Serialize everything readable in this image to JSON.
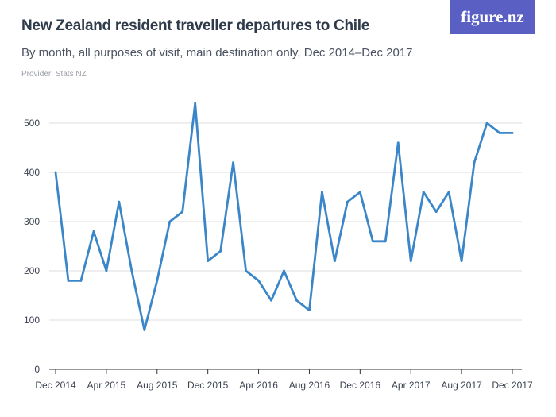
{
  "header": {
    "title": "New Zealand resident traveller departures to Chile",
    "subtitle": "By month, all purposes of visit, main destination only, Dec 2014–Dec 2017",
    "provider": "Provider: Stats NZ",
    "logo_text": "figure.nz"
  },
  "colors": {
    "line": "#3a86c8",
    "logo_background": "#5a5fc4",
    "gridline": "#dddddd"
  },
  "chart_data": {
    "type": "line",
    "title": "New Zealand resident traveller departures to Chile",
    "xlabel": "",
    "ylabel": "",
    "ylim": [
      0,
      540
    ],
    "yticks": [
      0,
      100,
      200,
      300,
      400,
      500
    ],
    "xtick_labels": [
      "Dec 2014",
      "Apr 2015",
      "Aug 2015",
      "Dec 2015",
      "Apr 2016",
      "Aug 2016",
      "Dec 2016",
      "Apr 2017",
      "Aug 2017",
      "Dec 2017"
    ],
    "x": [
      "Dec 2014",
      "Jan 2015",
      "Feb 2015",
      "Mar 2015",
      "Apr 2015",
      "May 2015",
      "Jun 2015",
      "Jul 2015",
      "Aug 2015",
      "Sep 2015",
      "Oct 2015",
      "Nov 2015",
      "Dec 2015",
      "Jan 2016",
      "Feb 2016",
      "Mar 2016",
      "Apr 2016",
      "May 2016",
      "Jun 2016",
      "Jul 2016",
      "Aug 2016",
      "Sep 2016",
      "Oct 2016",
      "Nov 2016",
      "Dec 2016",
      "Jan 2017",
      "Feb 2017",
      "Mar 2017",
      "Apr 2017",
      "May 2017",
      "Jun 2017",
      "Jul 2017",
      "Aug 2017",
      "Sep 2017",
      "Oct 2017",
      "Nov 2017",
      "Dec 2017"
    ],
    "values": [
      400,
      180,
      180,
      280,
      200,
      340,
      200,
      80,
      180,
      300,
      320,
      540,
      220,
      240,
      420,
      200,
      180,
      140,
      200,
      140,
      120,
      360,
      220,
      340,
      360,
      260,
      260,
      460,
      220,
      360,
      320,
      360,
      220,
      420,
      500,
      480,
      480
    ],
    "grid": true,
    "legend": "none"
  }
}
